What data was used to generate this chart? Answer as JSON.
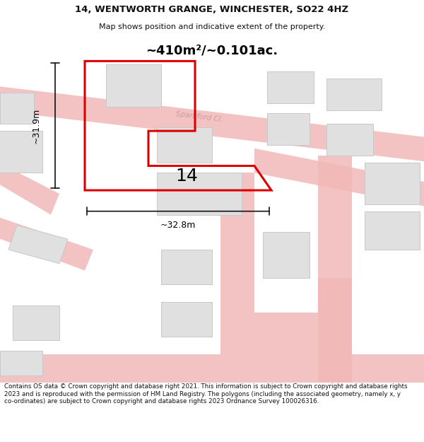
{
  "title_line1": "14, WENTWORTH GRANGE, WINCHESTER, SO22 4HZ",
  "title_line2": "Map shows position and indicative extent of the property.",
  "area_text": "~410m²/~0.101ac.",
  "street_label": "Sparkford Cl.",
  "number_label": "14",
  "dim_horiz": "~32.8m",
  "dim_vert": "~31.9m",
  "footer_text": "Contains OS data © Crown copyright and database right 2021. This information is subject to Crown copyright and database rights 2023 and is reproduced with the permission of HM Land Registry. The polygons (including the associated geometry, namely x, y co-ordinates) are subject to Crown copyright and database rights 2023 Ordnance Survey 100026316.",
  "bg_color": "#ffffff",
  "map_bg_color": "#fdf8f8",
  "plot_edge_color": "#dd0000",
  "road_color": "#f2b8b8",
  "road_edge_color": "#eeaaaa",
  "building_fill": "#e0e0e0",
  "building_edge": "#c8c8c8",
  "dim_line_color": "#111111",
  "title_color": "#111111",
  "footer_color": "#111111",
  "street_label_color": "#c8a0a0"
}
